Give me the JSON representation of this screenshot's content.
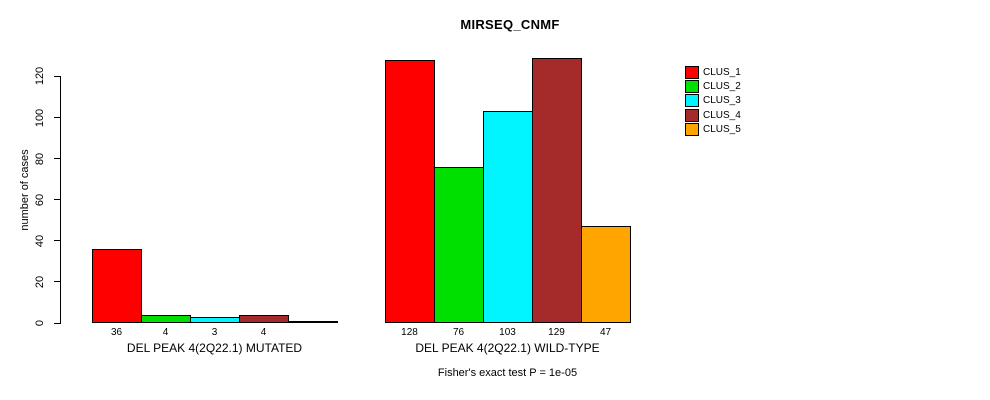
{
  "chart_data": {
    "type": "bar",
    "title": "MIRSEQ_CNMF",
    "ylabel": "number of cases",
    "xlabel": "",
    "ylim": [
      0,
      120
    ],
    "yticks": [
      0,
      20,
      40,
      60,
      80,
      100,
      120
    ],
    "grid": false,
    "legend_position": "right",
    "series": [
      {
        "name": "CLUS_1",
        "color": "#FF0000"
      },
      {
        "name": "CLUS_2",
        "color": "#00E000"
      },
      {
        "name": "CLUS_3",
        "color": "#00F5FF"
      },
      {
        "name": "CLUS_4",
        "color": "#A52A2A"
      },
      {
        "name": "CLUS_5",
        "color": "#FFA500"
      }
    ],
    "groups": [
      {
        "label": "DEL PEAK 4(2Q22.1) MUTATED",
        "values": [
          36,
          4,
          3,
          4,
          0
        ],
        "value_labels": [
          "36",
          "4",
          "3",
          "4",
          ""
        ]
      },
      {
        "label": "DEL PEAK 4(2Q22.1) WILD-TYPE",
        "values": [
          128,
          76,
          103,
          129,
          47
        ],
        "value_labels": [
          "128",
          "76",
          "103",
          "129",
          "47"
        ]
      }
    ],
    "annotation": "Fisher's exact test P = 1e-05"
  }
}
